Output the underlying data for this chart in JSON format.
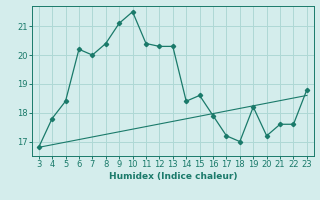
{
  "title": "",
  "xlabel": "Humidex (Indice chaleur)",
  "bg_color": "#d4edec",
  "grid_color": "#aed8d5",
  "line_color": "#1a7a6a",
  "x_values": [
    3,
    4,
    5,
    6,
    7,
    8,
    9,
    10,
    11,
    12,
    13,
    14,
    15,
    16,
    17,
    18,
    19,
    20,
    21,
    22,
    23
  ],
  "y_values": [
    16.8,
    17.8,
    18.4,
    20.2,
    20.0,
    20.4,
    21.1,
    21.5,
    20.4,
    20.3,
    20.3,
    18.4,
    18.6,
    17.9,
    17.2,
    17.0,
    18.2,
    17.2,
    17.6,
    17.6,
    18.8
  ],
  "trend_x": [
    3,
    23
  ],
  "trend_y": [
    16.8,
    18.6
  ],
  "ylim": [
    16.5,
    21.7
  ],
  "xlim": [
    2.5,
    23.5
  ],
  "yticks": [
    17,
    18,
    19,
    20,
    21
  ],
  "xticks": [
    3,
    4,
    5,
    6,
    7,
    8,
    9,
    10,
    11,
    12,
    13,
    14,
    15,
    16,
    17,
    18,
    19,
    20,
    21,
    22,
    23
  ],
  "label_fontsize": 6.5,
  "tick_fontsize": 6
}
